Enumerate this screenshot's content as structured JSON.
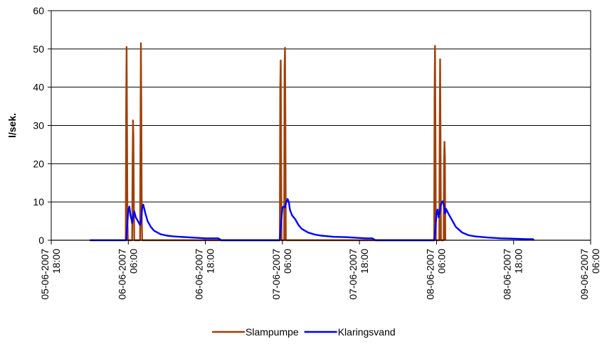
{
  "chart_data": {
    "type": "line",
    "title": "",
    "xlabel": "",
    "ylabel": "l/sek.",
    "ylim": [
      0,
      60
    ],
    "yticks": [
      0,
      10,
      20,
      30,
      40,
      50,
      60
    ],
    "xlim": [
      "05-06-2007 18:00",
      "09-06-2007 06:00"
    ],
    "xticks": [
      {
        "date": "05-06-2007",
        "time": "18:00"
      },
      {
        "date": "06-06-2007",
        "time": "06:00"
      },
      {
        "date": "06-06-2007",
        "time": "18:00"
      },
      {
        "date": "07-06-2007",
        "time": "06:00"
      },
      {
        "date": "07-06-2007",
        "time": "18:00"
      },
      {
        "date": "08-06-2007",
        "time": "06:00"
      },
      {
        "date": "08-06-2007",
        "time": "18:00"
      },
      {
        "date": "09-06-2007",
        "time": "06:00"
      }
    ],
    "grid": "horizontal",
    "legend_position": "bottom",
    "series": [
      {
        "name": "Slampumpe",
        "color": "#A0400A",
        "points": [
          [
            "06-06-2007 05:36",
            0
          ],
          [
            "06-06-2007 05:40",
            35
          ],
          [
            "06-06-2007 05:44",
            50.5
          ],
          [
            "06-06-2007 05:48",
            30
          ],
          [
            "06-06-2007 05:52",
            5
          ],
          [
            "06-06-2007 05:56",
            0
          ],
          [
            "06-06-2007 06:36",
            0
          ],
          [
            "06-06-2007 06:40",
            20
          ],
          [
            "06-06-2007 06:44",
            31.3
          ],
          [
            "06-06-2007 06:48",
            27
          ],
          [
            "06-06-2007 06:52",
            10
          ],
          [
            "06-06-2007 06:56",
            0
          ],
          [
            "06-06-2007 07:50",
            0
          ],
          [
            "06-06-2007 07:54",
            28
          ],
          [
            "06-06-2007 07:58",
            51.5
          ],
          [
            "06-06-2007 08:02",
            35
          ],
          [
            "06-06-2007 08:06",
            5
          ],
          [
            "06-06-2007 08:10",
            0
          ],
          [
            "07-06-2007 05:36",
            0
          ],
          [
            "07-06-2007 05:40",
            40
          ],
          [
            "07-06-2007 05:44",
            47
          ],
          [
            "07-06-2007 05:48",
            20
          ],
          [
            "07-06-2007 05:52",
            0
          ],
          [
            "07-06-2007 06:16",
            0
          ],
          [
            "07-06-2007 06:20",
            45
          ],
          [
            "07-06-2007 06:24",
            50.3
          ],
          [
            "07-06-2007 06:28",
            30
          ],
          [
            "07-06-2007 06:32",
            0
          ],
          [
            "08-06-2007 05:38",
            0
          ],
          [
            "08-06-2007 05:42",
            38
          ],
          [
            "08-06-2007 05:46",
            50.8
          ],
          [
            "08-06-2007 05:50",
            30
          ],
          [
            "08-06-2007 05:54",
            0
          ],
          [
            "08-06-2007 06:26",
            0
          ],
          [
            "08-06-2007 06:30",
            30
          ],
          [
            "08-06-2007 06:34",
            47.3
          ],
          [
            "08-06-2007 06:38",
            25
          ],
          [
            "08-06-2007 06:42",
            0
          ],
          [
            "08-06-2007 07:06",
            0
          ],
          [
            "08-06-2007 07:10",
            20
          ],
          [
            "08-06-2007 07:14",
            25.7
          ],
          [
            "08-06-2007 07:18",
            22
          ],
          [
            "08-06-2007 07:22",
            0
          ]
        ]
      },
      {
        "name": "Klaringsvand",
        "color": "#0000FF",
        "points": [
          [
            "06-06-2007 00:00",
            0
          ],
          [
            "06-06-2007 05:40",
            0
          ],
          [
            "06-06-2007 05:50",
            4
          ],
          [
            "06-06-2007 06:00",
            8
          ],
          [
            "06-06-2007 06:10",
            8.8
          ],
          [
            "06-06-2007 06:20",
            6.5
          ],
          [
            "06-06-2007 06:30",
            5.5
          ],
          [
            "06-06-2007 06:36",
            4.5
          ],
          [
            "06-06-2007 06:48",
            6.5
          ],
          [
            "06-06-2007 06:56",
            7.5
          ],
          [
            "06-06-2007 07:10",
            6
          ],
          [
            "06-06-2007 07:30",
            5
          ],
          [
            "06-06-2007 07:50",
            4
          ],
          [
            "06-06-2007 08:00",
            5
          ],
          [
            "06-06-2007 08:10",
            8.5
          ],
          [
            "06-06-2007 08:20",
            9.3
          ],
          [
            "06-06-2007 08:40",
            7
          ],
          [
            "06-06-2007 09:00",
            5
          ],
          [
            "06-06-2007 09:30",
            3.5
          ],
          [
            "06-06-2007 10:00",
            2.5
          ],
          [
            "06-06-2007 11:00",
            1.6
          ],
          [
            "06-06-2007 12:00",
            1.2
          ],
          [
            "06-06-2007 13:00",
            1
          ],
          [
            "06-06-2007 15:00",
            0.8
          ],
          [
            "06-06-2007 18:00",
            0.5
          ],
          [
            "06-06-2007 20:00",
            0.5
          ],
          [
            "06-06-2007 20:30",
            0
          ],
          [
            "07-06-2007 05:36",
            0
          ],
          [
            "07-06-2007 05:48",
            5
          ],
          [
            "07-06-2007 06:00",
            8.5
          ],
          [
            "07-06-2007 06:10",
            8.8
          ],
          [
            "07-06-2007 06:24",
            8.5
          ],
          [
            "07-06-2007 06:36",
            10
          ],
          [
            "07-06-2007 06:48",
            10.8
          ],
          [
            "07-06-2007 07:00",
            10
          ],
          [
            "07-06-2007 07:10",
            8
          ],
          [
            "07-06-2007 07:30",
            6.5
          ],
          [
            "07-06-2007 08:00",
            5.5
          ],
          [
            "07-06-2007 08:30",
            4
          ],
          [
            "07-06-2007 09:00",
            3
          ],
          [
            "07-06-2007 10:00",
            2
          ],
          [
            "07-06-2007 11:00",
            1.5
          ],
          [
            "07-06-2007 12:00",
            1.2
          ],
          [
            "07-06-2007 14:00",
            0.9
          ],
          [
            "07-06-2007 16:00",
            0.8
          ],
          [
            "07-06-2007 18:00",
            0.6
          ],
          [
            "07-06-2007 19:00",
            0.5
          ],
          [
            "07-06-2007 20:00",
            0.5
          ],
          [
            "07-06-2007 20:30",
            0
          ],
          [
            "08-06-2007 05:30",
            0
          ],
          [
            "08-06-2007 05:40",
            0
          ],
          [
            "08-06-2007 05:50",
            3
          ],
          [
            "08-06-2007 06:00",
            7
          ],
          [
            "08-06-2007 06:10",
            8
          ],
          [
            "08-06-2007 06:20",
            6
          ],
          [
            "08-06-2007 06:30",
            7.5
          ],
          [
            "08-06-2007 06:40",
            9
          ],
          [
            "08-06-2007 06:50",
            10
          ],
          [
            "08-06-2007 07:00",
            10.2
          ],
          [
            "08-06-2007 07:10",
            9
          ],
          [
            "08-06-2007 07:20",
            7
          ],
          [
            "08-06-2007 07:30",
            8.2
          ],
          [
            "08-06-2007 07:40",
            7.5
          ],
          [
            "08-06-2007 08:00",
            6.5
          ],
          [
            "08-06-2007 08:30",
            5
          ],
          [
            "08-06-2007 09:00",
            3.5
          ],
          [
            "08-06-2007 10:00",
            2
          ],
          [
            "08-06-2007 11:00",
            1.3
          ],
          [
            "08-06-2007 12:00",
            1
          ],
          [
            "08-06-2007 14:00",
            0.7
          ],
          [
            "08-06-2007 16:00",
            0.5
          ],
          [
            "08-06-2007 18:00",
            0.4
          ],
          [
            "08-06-2007 20:00",
            0.3
          ],
          [
            "08-06-2007 21:00",
            0.3
          ],
          [
            "08-06-2007 21:10",
            0
          ]
        ]
      }
    ]
  }
}
